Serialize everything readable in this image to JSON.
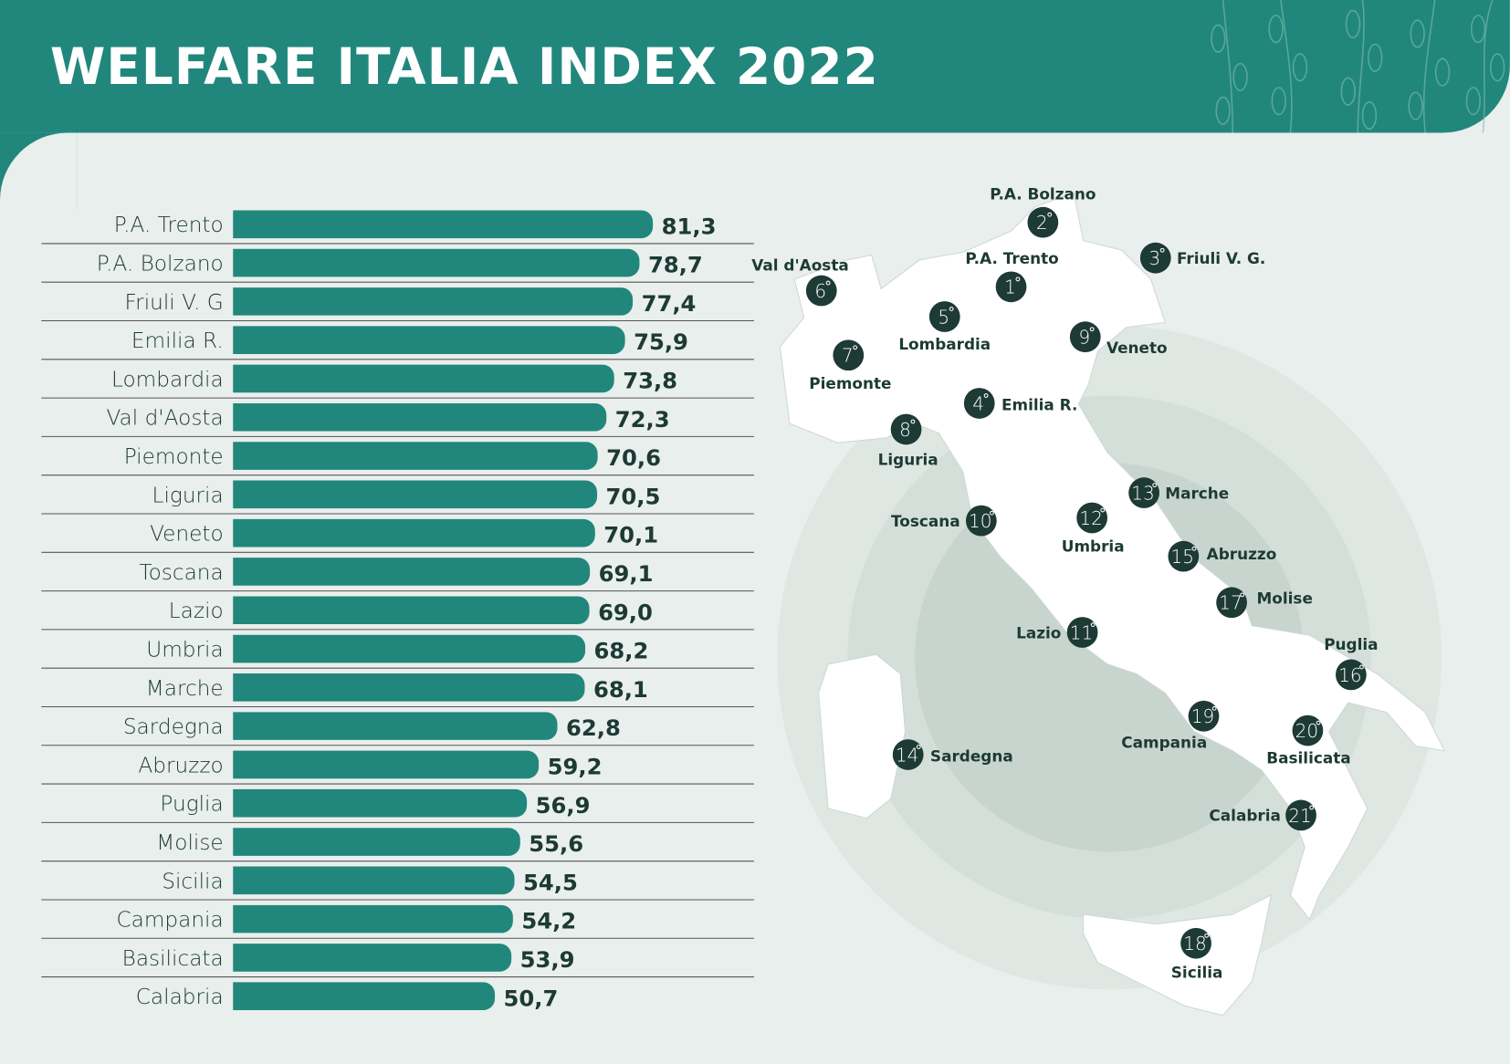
{
  "title": "WELFARE ITALIA INDEX 2022",
  "colors": {
    "bar": "#21877c",
    "marker": "#1d3a34",
    "text": "#1d3a34",
    "map": "#ffffff"
  },
  "chart_data": {
    "type": "bar",
    "orientation": "horizontal",
    "title": "WELFARE ITALIA INDEX 2022",
    "categories": [
      "P.A. Trento",
      "P.A. Bolzano",
      "Friuli V. G",
      "Emilia R.",
      "Lombardia",
      "Val d'Aosta",
      "Piemonte",
      "Liguria",
      "Veneto",
      "Toscana",
      "Lazio",
      "Umbria",
      "Marche",
      "Sardegna",
      "Abruzzo",
      "Puglia",
      "Molise",
      "Sicilia",
      "Campania",
      "Basilicata",
      "Calabria"
    ],
    "values": [
      81.3,
      78.7,
      77.4,
      75.9,
      73.8,
      72.3,
      70.6,
      70.5,
      70.1,
      69.1,
      69.0,
      68.2,
      68.1,
      62.8,
      59.2,
      56.9,
      55.6,
      54.5,
      54.2,
      53.9,
      50.7
    ],
    "value_labels": [
      "81,3",
      "78,7",
      "77,4",
      "75,9",
      "73,8",
      "72,3",
      "70,6",
      "70,5",
      "70,1",
      "69,1",
      "69,0",
      "68,2",
      "68,1",
      "62,8",
      "59,2",
      "56,9",
      "55,6",
      "54,5",
      "54,2",
      "53,9",
      "50,7"
    ],
    "xlabel": "",
    "ylabel": "",
    "xlim": [
      0,
      81.3
    ]
  },
  "map": {
    "markers": [
      {
        "rank": "2",
        "name": "P.A. Bolzano"
      },
      {
        "rank": "1",
        "name": "P.A. Trento"
      },
      {
        "rank": "3",
        "name": "Friuli V. G."
      },
      {
        "rank": "6",
        "name": "Val d'Aosta"
      },
      {
        "rank": "5",
        "name": "Lombardia"
      },
      {
        "rank": "9",
        "name": "Veneto"
      },
      {
        "rank": "7",
        "name": "Piemonte"
      },
      {
        "rank": "4",
        "name": "Emilia R."
      },
      {
        "rank": "8",
        "name": "Liguria"
      },
      {
        "rank": "13",
        "name": "Marche"
      },
      {
        "rank": "10",
        "name": "Toscana"
      },
      {
        "rank": "12",
        "name": "Umbria"
      },
      {
        "rank": "15",
        "name": "Abruzzo"
      },
      {
        "rank": "17",
        "name": "Molise"
      },
      {
        "rank": "11",
        "name": "Lazio"
      },
      {
        "rank": "16",
        "name": "Puglia"
      },
      {
        "rank": "19",
        "name": "Campania"
      },
      {
        "rank": "20",
        "name": "Basilicata"
      },
      {
        "rank": "14",
        "name": "Sardegna"
      },
      {
        "rank": "21",
        "name": "Calabria"
      },
      {
        "rank": "18",
        "name": "Sicilia"
      }
    ]
  }
}
